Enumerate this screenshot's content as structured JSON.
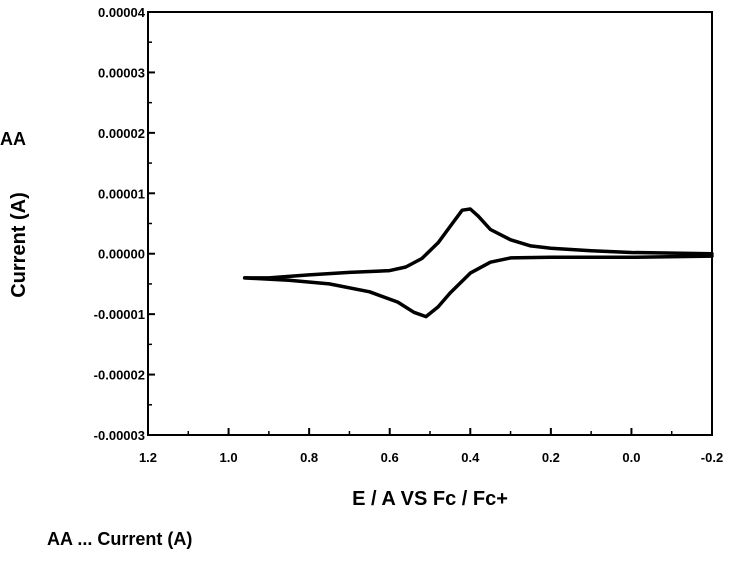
{
  "side_label": "AA",
  "caption": "AA ... Current (A)",
  "chart_data": {
    "type": "line",
    "title": "",
    "xlabel": "E / A VS Fc / Fc+",
    "ylabel": "Current (A)",
    "xlim": [
      1.2,
      -0.2
    ],
    "ylim": [
      -3e-05,
      4e-05
    ],
    "x_ticks": [
      "1.2",
      "1.0",
      "0.8",
      "0.6",
      "0.4",
      "0.2",
      "0.0",
      "-0.2"
    ],
    "y_ticks": [
      "0.00004",
      "0.00003",
      "0.00002",
      "0.00001",
      "0.00000",
      "-0.00001",
      "-0.00002",
      "-0.00003"
    ],
    "grid": false,
    "legend": "none",
    "series": [
      {
        "segment": "anodic",
        "color": "#000000",
        "points": [
          [
            0.96,
            -4e-06
          ],
          [
            0.9,
            -4e-06
          ],
          [
            0.8,
            -3.5e-06
          ],
          [
            0.7,
            -3.1e-06
          ],
          [
            0.6,
            -2.8e-06
          ],
          [
            0.56,
            -2.2e-06
          ],
          [
            0.52,
            -8e-07
          ],
          [
            0.48,
            1.8e-06
          ],
          [
            0.45,
            4.5e-06
          ],
          [
            0.42,
            7.2e-06
          ],
          [
            0.4,
            7.4e-06
          ],
          [
            0.38,
            6.2e-06
          ],
          [
            0.35,
            4e-06
          ],
          [
            0.3,
            2.3e-06
          ],
          [
            0.25,
            1.3e-06
          ],
          [
            0.2,
            9e-07
          ],
          [
            0.1,
            5e-07
          ],
          [
            0.0,
            2e-07
          ],
          [
            -0.2,
            0.0
          ]
        ]
      },
      {
        "segment": "cathodic",
        "color": "#000000",
        "points": [
          [
            -0.2,
            -4e-07
          ],
          [
            0.0,
            -6e-07
          ],
          [
            0.1,
            -6e-07
          ],
          [
            0.2,
            -6e-07
          ],
          [
            0.3,
            -7e-07
          ],
          [
            0.35,
            -1.4e-06
          ],
          [
            0.4,
            -3.2e-06
          ],
          [
            0.45,
            -6.5e-06
          ],
          [
            0.48,
            -8.8e-06
          ],
          [
            0.51,
            -1.04e-05
          ],
          [
            0.54,
            -9.7e-06
          ],
          [
            0.58,
            -8e-06
          ],
          [
            0.65,
            -6.3e-06
          ],
          [
            0.75,
            -5e-06
          ],
          [
            0.85,
            -4.4e-06
          ],
          [
            0.96,
            -4e-06
          ]
        ]
      }
    ]
  }
}
